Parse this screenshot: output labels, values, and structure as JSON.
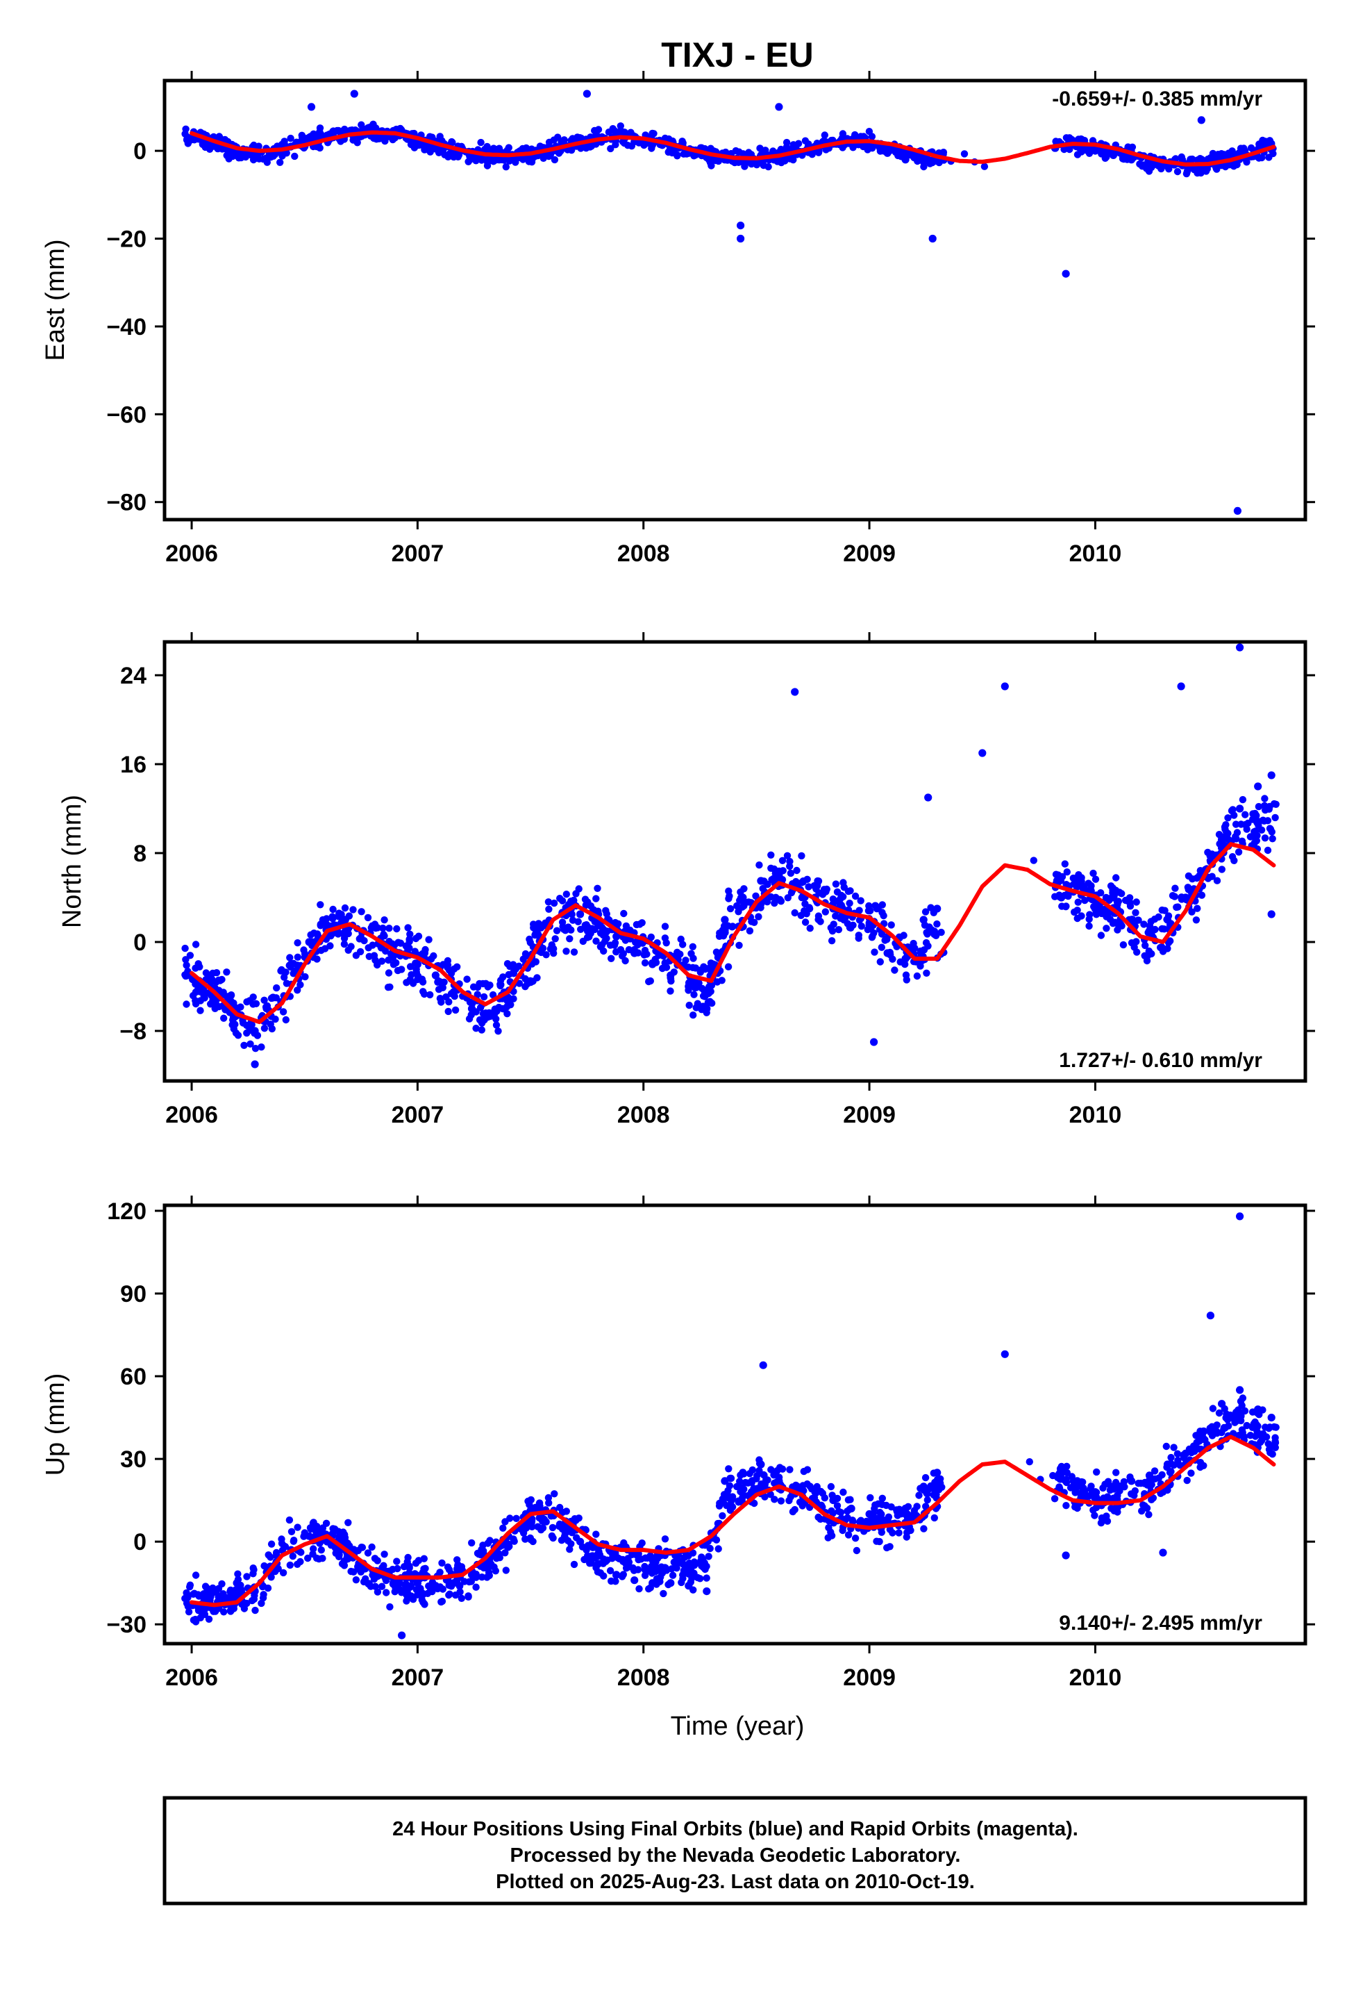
{
  "title": "TIXJ - EU",
  "colors": {
    "final_orbits": "#0000ff",
    "model_fit": "#ff0000",
    "frame": "#000000"
  },
  "xlabel": "Time (year)",
  "footer": [
    "24 Hour Positions Using Final Orbits (blue) and Rapid Orbits (magenta).",
    "Processed by the Nevada Geodetic Laboratory.",
    "Plotted on 2025-Aug-23. Last data on 2010-Oct-19."
  ],
  "chart_data": [
    {
      "type": "scatter",
      "panel": "east",
      "ylabel": "East (mm)",
      "rate": "-0.659+/- 0.385 mm/yr",
      "xlim": [
        2005.88,
        2010.93
      ],
      "ylim": [
        -84,
        16
      ],
      "xticks": [
        2006,
        2007,
        2008,
        2009,
        2010
      ],
      "yticks": [
        0,
        -20,
        -40,
        -60,
        -80
      ],
      "yticklabels": [
        "0",
        "−20",
        "−40",
        "−60",
        "−80"
      ],
      "series": [
        {
          "style": "points",
          "x": [
            2005.98,
            2006.05,
            2006.12,
            2006.2,
            2006.28,
            2006.36,
            2006.44,
            2006.52,
            2006.6,
            2006.68,
            2006.76,
            2006.84,
            2006.92,
            2007.0,
            2007.08,
            2007.16,
            2007.24,
            2007.32,
            2007.4,
            2007.48,
            2007.56,
            2007.64,
            2007.72,
            2007.8,
            2007.88,
            2007.96,
            2008.04,
            2008.12,
            2008.2,
            2008.28,
            2008.36,
            2008.44,
            2008.52,
            2008.6,
            2008.68,
            2008.76,
            2008.84,
            2008.92,
            2009.0,
            2009.08,
            2009.16,
            2009.24,
            2009.3,
            2009.85,
            2009.92,
            2010.0,
            2010.08,
            2010.16,
            2010.24,
            2010.32,
            2010.4,
            2010.48,
            2010.56,
            2010.64,
            2010.72,
            2010.78,
            2006.53,
            2006.72,
            2007.75,
            2008.43,
            2008.43,
            2008.6,
            2009.28,
            2009.87,
            2010.63,
            2010.47
          ],
          "y": [
            2.5,
            1.5,
            0.8,
            -0.5,
            -1,
            -0.5,
            1,
            3,
            3.5,
            4,
            4,
            4,
            3.5,
            2,
            0.5,
            -0.5,
            -1,
            -1.5,
            -1.5,
            -1,
            0,
            1,
            2,
            3,
            3.5,
            3,
            2,
            1,
            -0.5,
            -1.5,
            -2,
            -2.5,
            -2,
            -1,
            0,
            1,
            2,
            2.5,
            1.5,
            -0.5,
            -2,
            -2.5,
            -2,
            1.5,
            1,
            0,
            -1,
            -2,
            -3,
            -3.5,
            -3,
            -3,
            -2,
            -1,
            0,
            1,
            10,
            13,
            13,
            -17,
            -20,
            10,
            -20,
            -28,
            -82,
            7
          ]
        },
        {
          "style": "line",
          "x": [
            2006.0,
            2006.1,
            2006.2,
            2006.3,
            2006.4,
            2006.5,
            2006.6,
            2006.7,
            2006.8,
            2006.9,
            2007.0,
            2007.1,
            2007.2,
            2007.3,
            2007.4,
            2007.5,
            2007.6,
            2007.7,
            2007.8,
            2007.9,
            2008.0,
            2008.1,
            2008.2,
            2008.3,
            2008.4,
            2008.5,
            2008.6,
            2008.7,
            2008.8,
            2008.9,
            2009.0,
            2009.1,
            2009.2,
            2009.3,
            2009.4,
            2009.5,
            2009.6,
            2009.7,
            2009.8,
            2009.9,
            2010.0,
            2010.1,
            2010.2,
            2010.3,
            2010.4,
            2010.5,
            2010.6,
            2010.7,
            2010.79
          ],
          "y": [
            4,
            2.2,
            0.6,
            0,
            0.3,
            1.3,
            2.6,
            3.7,
            4.2,
            4,
            2.9,
            1.4,
            0.1,
            -0.8,
            -1,
            -0.6,
            0.4,
            1.6,
            2.6,
            3.1,
            2.8,
            1.8,
            0.4,
            -0.8,
            -1.6,
            -1.7,
            -1.1,
            0,
            1.2,
            2.1,
            2.2,
            1.5,
            0.2,
            -1.3,
            -2.3,
            -2.5,
            -1.8,
            -0.5,
            0.9,
            1.6,
            1.4,
            0.4,
            -1.1,
            -2.4,
            -3.1,
            -3,
            -2.1,
            -0.6,
            0.9
          ]
        }
      ]
    },
    {
      "type": "scatter",
      "panel": "north",
      "ylabel": "North (mm)",
      "rate": "1.727+/- 0.610 mm/yr",
      "xlim": [
        2005.88,
        2010.93
      ],
      "ylim": [
        -12.5,
        27
      ],
      "xticks": [
        2006,
        2007,
        2008,
        2009,
        2010
      ],
      "yticks": [
        24,
        16,
        8,
        0,
        -8
      ],
      "yticklabels": [
        "24",
        "16",
        "8",
        "0",
        "−8"
      ],
      "series": [
        {
          "style": "points",
          "x": [
            2005.98,
            2006.05,
            2006.12,
            2006.2,
            2006.28,
            2006.36,
            2006.44,
            2006.52,
            2006.6,
            2006.68,
            2006.76,
            2006.84,
            2006.92,
            2007.0,
            2007.08,
            2007.16,
            2007.24,
            2007.32,
            2007.4,
            2007.48,
            2007.56,
            2007.64,
            2007.72,
            2007.8,
            2007.88,
            2007.96,
            2008.04,
            2008.12,
            2008.2,
            2008.28,
            2008.36,
            2008.44,
            2008.52,
            2008.6,
            2008.68,
            2008.76,
            2008.84,
            2008.92,
            2009.0,
            2009.08,
            2009.16,
            2009.24,
            2009.3,
            2009.85,
            2009.92,
            2010.0,
            2010.08,
            2010.16,
            2010.24,
            2010.32,
            2010.4,
            2010.48,
            2010.56,
            2010.64,
            2010.72,
            2010.78,
            2008.67,
            2009.5,
            2009.6,
            2010.38,
            2010.64,
            2010.78,
            2009.02,
            2009.26,
            2006.28
          ],
          "y": [
            -3,
            -4,
            -5,
            -6.5,
            -8,
            -5,
            -2,
            0,
            1.5,
            2,
            1,
            -0.5,
            -1,
            -2,
            -3,
            -4.5,
            -6,
            -6.5,
            -5,
            -2,
            1.5,
            2.5,
            2.5,
            1.5,
            0.5,
            -1,
            -2,
            -3,
            -4,
            -6,
            2,
            4,
            5.5,
            6,
            5,
            4,
            3,
            2.5,
            1.5,
            -1,
            -1.5,
            2,
            3,
            4,
            5,
            3,
            4,
            2,
            1,
            2,
            4,
            6,
            9,
            12,
            14,
            15,
            22.5,
            17,
            23,
            23,
            26.5,
            2.5,
            -9,
            13,
            -11
          ]
        },
        {
          "style": "line",
          "x": [
            2006.0,
            2006.1,
            2006.2,
            2006.3,
            2006.4,
            2006.5,
            2006.6,
            2006.7,
            2006.8,
            2006.9,
            2007.0,
            2007.1,
            2007.2,
            2007.3,
            2007.4,
            2007.5,
            2007.6,
            2007.7,
            2007.8,
            2007.9,
            2008.0,
            2008.1,
            2008.2,
            2008.3,
            2008.4,
            2008.5,
            2008.6,
            2008.7,
            2008.8,
            2008.9,
            2009.0,
            2009.1,
            2009.2,
            2009.3,
            2009.4,
            2009.5,
            2009.6,
            2009.7,
            2009.8,
            2009.9,
            2010.0,
            2010.1,
            2010.2,
            2010.3,
            2010.4,
            2010.5,
            2010.6,
            2010.7,
            2010.79
          ],
          "y": [
            -2.8,
            -4.5,
            -6.5,
            -7.2,
            -5.5,
            -2,
            1,
            1.6,
            0.5,
            -0.8,
            -1.4,
            -2.5,
            -4.5,
            -5.6,
            -4.5,
            -1.5,
            2,
            3.3,
            2.2,
            0.8,
            0.3,
            -1,
            -3,
            -3.5,
            0.5,
            3.6,
            5.3,
            4.6,
            3.4,
            2.6,
            2.2,
            0.6,
            -1.5,
            -1.5,
            1.5,
            5,
            6.9,
            6.5,
            5.2,
            4.6,
            4.1,
            2.6,
            0.5,
            0,
            2.8,
            6.6,
            8.8,
            8.3,
            6.9
          ]
        }
      ]
    },
    {
      "type": "scatter",
      "panel": "up",
      "ylabel": "Up (mm)",
      "rate": "9.140+/- 2.495 mm/yr",
      "xlim": [
        2005.88,
        2010.93
      ],
      "ylim": [
        -37,
        122
      ],
      "xticks": [
        2006,
        2007,
        2008,
        2009,
        2010
      ],
      "yticks": [
        120,
        90,
        60,
        30,
        0,
        -30
      ],
      "yticklabels": [
        "120",
        "90",
        "60",
        "30",
        "0",
        "−30"
      ],
      "series": [
        {
          "style": "points",
          "x": [
            2005.98,
            2006.05,
            2006.12,
            2006.2,
            2006.28,
            2006.36,
            2006.44,
            2006.52,
            2006.6,
            2006.68,
            2006.76,
            2006.84,
            2006.92,
            2007.0,
            2007.08,
            2007.16,
            2007.24,
            2007.32,
            2007.4,
            2007.48,
            2007.56,
            2007.64,
            2007.72,
            2007.8,
            2007.88,
            2007.96,
            2008.04,
            2008.12,
            2008.2,
            2008.28,
            2008.36,
            2008.44,
            2008.52,
            2008.6,
            2008.68,
            2008.76,
            2008.84,
            2008.92,
            2009.0,
            2009.08,
            2009.16,
            2009.24,
            2009.3,
            2009.85,
            2009.92,
            2010.0,
            2010.08,
            2010.16,
            2010.24,
            2010.32,
            2010.4,
            2010.48,
            2010.56,
            2010.64,
            2010.72,
            2010.78,
            2010.64,
            2010.51,
            2009.6,
            2008.53,
            2006.93,
            2009.87,
            2010.3
          ],
          "y": [
            -20,
            -23,
            -20,
            -15,
            -18,
            -10,
            -3,
            2,
            0,
            -3,
            -8,
            -12,
            -15,
            -15,
            -16,
            -15,
            -12,
            -8,
            -2,
            5,
            8,
            5,
            0,
            -8,
            -12,
            -14,
            -15,
            -15,
            -16,
            -18,
            22,
            25,
            28,
            22,
            20,
            18,
            15,
            12,
            10,
            8,
            12,
            20,
            25,
            25,
            22,
            18,
            20,
            22,
            24,
            28,
            32,
            40,
            50,
            55,
            48,
            45,
            118,
            82,
            68,
            64,
            -34,
            -5,
            -4
          ]
        },
        {
          "style": "line",
          "x": [
            2006.0,
            2006.1,
            2006.2,
            2006.3,
            2006.4,
            2006.5,
            2006.6,
            2006.7,
            2006.8,
            2006.9,
            2007.0,
            2007.1,
            2007.2,
            2007.3,
            2007.4,
            2007.5,
            2007.6,
            2007.7,
            2007.8,
            2007.9,
            2008.0,
            2008.1,
            2008.2,
            2008.3,
            2008.4,
            2008.5,
            2008.6,
            2008.7,
            2008.8,
            2008.9,
            2009.0,
            2009.1,
            2009.2,
            2009.3,
            2009.4,
            2009.5,
            2009.6,
            2009.7,
            2009.8,
            2009.9,
            2010.0,
            2010.1,
            2010.2,
            2010.3,
            2010.4,
            2010.5,
            2010.6,
            2010.7,
            2010.79
          ],
          "y": [
            -22,
            -23,
            -22,
            -15,
            -5,
            -1,
            2,
            -4,
            -10,
            -13,
            -13,
            -13,
            -12,
            -6,
            3,
            10,
            11,
            5,
            -1,
            -3,
            -3,
            -4,
            -3,
            2,
            10,
            17,
            20,
            17,
            10,
            6,
            5,
            6,
            7,
            14,
            22,
            28,
            29,
            24,
            19,
            15,
            14,
            14,
            15,
            20,
            27,
            34,
            38,
            34,
            28
          ]
        }
      ]
    }
  ]
}
